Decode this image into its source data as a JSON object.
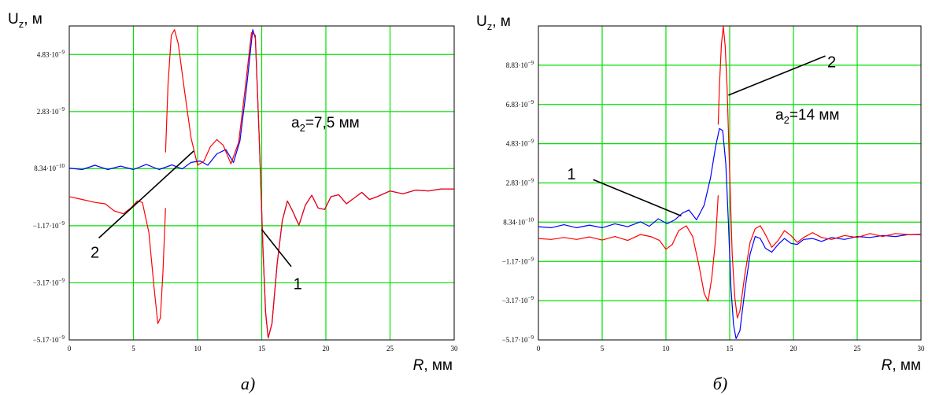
{
  "chart_data": [
    {
      "type": "line",
      "panel": "a",
      "ylabel": "Uz, м",
      "ylabel_main": "U",
      "ylabel_sub": "z",
      "ylabel_unit": ", м",
      "xlabel": "R, мм",
      "xlabel_var": "R",
      "xlabel_unit": ", мм",
      "caption": "а)",
      "annotation": {
        "prefix": "a",
        "sub": "2",
        "suffix": "=7,5 мм"
      },
      "xlim": [
        0,
        30
      ],
      "ylim": [
        -5.17e-09,
        5.83e-09
      ],
      "grid": true,
      "x_ticks": [
        {
          "value": 0,
          "label": "0"
        },
        {
          "value": 5,
          "label": "5"
        },
        {
          "value": 10,
          "label": "10"
        },
        {
          "value": 15,
          "label": "15"
        },
        {
          "value": 20,
          "label": "20"
        },
        {
          "value": 25,
          "label": "25"
        },
        {
          "value": 30,
          "label": "30"
        }
      ],
      "y_ticks": [
        {
          "value": -5.17e-09,
          "mant": "−5.17·10",
          "exp": "−9"
        },
        {
          "value": -3.17e-09,
          "mant": "−3.17·10",
          "exp": "−9"
        },
        {
          "value": -1.17e-09,
          "mant": "−1.17·10",
          "exp": "−9"
        },
        {
          "value": 8.34e-10,
          "mant": "8.34·10",
          "exp": "−10"
        },
        {
          "value": 2.83e-09,
          "mant": "2.83·10",
          "exp": "−9"
        },
        {
          "value": 4.83e-09,
          "mant": "4.83·10",
          "exp": "−9"
        }
      ],
      "series": [
        {
          "label": "1",
          "color": "#0000ff",
          "points": [
            [
              0,
              0.85
            ],
            [
              1,
              0.8
            ],
            [
              2,
              0.95
            ],
            [
              3,
              0.8
            ],
            [
              4,
              0.92
            ],
            [
              5,
              0.8
            ],
            [
              6,
              0.98
            ],
            [
              7,
              0.8
            ],
            [
              8,
              0.96
            ],
            [
              8.8,
              0.82
            ],
            [
              9.5,
              1.05
            ],
            [
              10.2,
              1.1
            ],
            [
              10.8,
              0.95
            ],
            [
              11.5,
              1.35
            ],
            [
              12.2,
              1.5
            ],
            [
              12.8,
              1.05
            ],
            [
              13.3,
              1.8
            ],
            [
              13.8,
              3.6
            ],
            [
              14.3,
              5.7
            ],
            [
              14.5,
              5.4
            ],
            [
              14.8,
              2.0
            ],
            [
              15.1,
              -2.0
            ],
            [
              15.3,
              -4.2
            ],
            [
              15.5,
              -5.1
            ],
            [
              15.8,
              -4.6
            ],
            [
              16.2,
              -2.5
            ],
            [
              16.6,
              -1.0
            ],
            [
              17.0,
              -0.3
            ],
            [
              17.4,
              -0.65
            ],
            [
              17.9,
              -1.15
            ],
            [
              18.4,
              -0.45
            ],
            [
              18.9,
              -0.1
            ],
            [
              19.4,
              -0.55
            ],
            [
              19.9,
              -0.6
            ],
            [
              20.4,
              -0.15
            ],
            [
              21,
              -0.08
            ],
            [
              21.6,
              -0.4
            ],
            [
              22.2,
              -0.2
            ],
            [
              22.8,
              0
            ],
            [
              23.4,
              -0.25
            ],
            [
              24,
              -0.15
            ],
            [
              25,
              0.05
            ],
            [
              26,
              -0.05
            ],
            [
              27,
              0.08
            ],
            [
              28,
              0.05
            ],
            [
              29,
              0.12
            ],
            [
              30,
              0.12
            ]
          ]
        },
        {
          "label": "2",
          "color": "#ff0000",
          "segments": [
            [
              [
                0,
                -0.15
              ],
              [
                1,
                -0.25
              ],
              [
                2,
                -0.35
              ],
              [
                2.8,
                -0.4
              ],
              [
                3.5,
                -0.65
              ],
              [
                4.2,
                -0.75
              ],
              [
                4.8,
                -0.55
              ],
              [
                5.3,
                -0.3
              ],
              [
                5.7,
                -0.35
              ],
              [
                6.2,
                -1.4
              ],
              [
                6.6,
                -3.3
              ],
              [
                6.9,
                -4.6
              ],
              [
                7.1,
                -4.4
              ],
              [
                7.3,
                -2.8
              ],
              [
                7.5,
                -0.55
              ]
            ],
            [
              [
                7.5,
                1.4
              ],
              [
                7.7,
                3.8
              ],
              [
                7.95,
                5.5
              ],
              [
                8.2,
                5.7
              ],
              [
                8.5,
                5.2
              ],
              [
                9.0,
                3.5
              ],
              [
                9.5,
                1.9
              ],
              [
                10.0,
                0.95
              ],
              [
                10.5,
                1.1
              ],
              [
                11.0,
                1.6
              ],
              [
                11.5,
                1.85
              ],
              [
                12.0,
                1.65
              ],
              [
                12.6,
                1.0
              ],
              [
                13.2,
                1.75
              ],
              [
                13.7,
                3.6
              ],
              [
                14.2,
                5.6
              ],
              [
                14.5,
                5.5
              ],
              [
                14.8,
                2.0
              ],
              [
                15.1,
                -2.0
              ],
              [
                15.3,
                -4.2
              ],
              [
                15.5,
                -5.1
              ],
              [
                15.8,
                -4.6
              ],
              [
                16.2,
                -2.5
              ],
              [
                16.6,
                -1.0
              ],
              [
                17.0,
                -0.3
              ],
              [
                17.4,
                -0.65
              ],
              [
                17.9,
                -1.15
              ],
              [
                18.4,
                -0.45
              ],
              [
                18.9,
                -0.1
              ],
              [
                19.4,
                -0.55
              ],
              [
                19.9,
                -0.6
              ],
              [
                20.4,
                -0.15
              ],
              [
                21,
                -0.08
              ],
              [
                21.6,
                -0.4
              ],
              [
                22.2,
                -0.2
              ],
              [
                22.8,
                0
              ],
              [
                23.4,
                -0.25
              ],
              [
                24,
                -0.15
              ],
              [
                25,
                0.05
              ],
              [
                26,
                -0.05
              ],
              [
                27,
                0.08
              ],
              [
                28,
                0.05
              ],
              [
                29,
                0.12
              ],
              [
                30,
                0.12
              ]
            ]
          ]
        }
      ],
      "leaders": [
        {
          "label": "2",
          "from": [
            2.3,
            -1.6
          ],
          "to": [
            9.7,
            1.45
          ],
          "label_at": [
            2.0,
            -2.1
          ]
        },
        {
          "label": "1",
          "from": [
            17.3,
            -2.6
          ],
          "to": [
            15.0,
            -1.3
          ],
          "label_at": [
            17.8,
            -3.2
          ]
        }
      ]
    },
    {
      "type": "line",
      "panel": "б",
      "ylabel": "Uz, м",
      "ylabel_main": "U",
      "ylabel_sub": "z",
      "ylabel_unit": ", м",
      "xlabel": "R, мм",
      "xlabel_var": "R",
      "xlabel_unit": ", мм",
      "caption": "б)",
      "annotation": {
        "prefix": "a",
        "sub": "2",
        "suffix": "=14 мм"
      },
      "xlim": [
        0,
        30
      ],
      "ylim": [
        -5.17e-09,
        1.083e-08
      ],
      "grid": true,
      "x_ticks": [
        {
          "value": 0,
          "label": "0"
        },
        {
          "value": 5,
          "label": "5"
        },
        {
          "value": 10,
          "label": "10"
        },
        {
          "value": 15,
          "label": "15"
        },
        {
          "value": 20,
          "label": "20"
        },
        {
          "value": 25,
          "label": "25"
        },
        {
          "value": 30,
          "label": "30"
        }
      ],
      "y_ticks": [
        {
          "value": -5.17e-09,
          "mant": "−5.17·10",
          "exp": "−9"
        },
        {
          "value": -3.17e-09,
          "mant": "−3.17·10",
          "exp": "−9"
        },
        {
          "value": -1.17e-09,
          "mant": "−1.17·10",
          "exp": "−9"
        },
        {
          "value": 8.34e-10,
          "mant": "8.34·10",
          "exp": "−10"
        },
        {
          "value": 2.83e-09,
          "mant": "2.83·10",
          "exp": "−9"
        },
        {
          "value": 4.83e-09,
          "mant": "4.83·10",
          "exp": "−9"
        },
        {
          "value": 6.83e-09,
          "mant": "6.83·10",
          "exp": "−9"
        },
        {
          "value": 8.83e-09,
          "mant": "8.83·10",
          "exp": "−9"
        }
      ],
      "series": [
        {
          "label": "1",
          "color": "#0000ff",
          "points": [
            [
              0,
              0.6
            ],
            [
              1,
              0.55
            ],
            [
              2,
              0.7
            ],
            [
              3,
              0.55
            ],
            [
              4,
              0.68
            ],
            [
              5,
              0.55
            ],
            [
              6,
              0.75
            ],
            [
              7,
              0.6
            ],
            [
              8,
              0.85
            ],
            [
              8.7,
              0.62
            ],
            [
              9.4,
              1.0
            ],
            [
              10.1,
              0.75
            ],
            [
              10.7,
              0.95
            ],
            [
              11.3,
              1.3
            ],
            [
              11.8,
              1.45
            ],
            [
              12.4,
              0.95
            ],
            [
              13.0,
              1.7
            ],
            [
              13.5,
              3.1
            ],
            [
              13.9,
              4.7
            ],
            [
              14.2,
              5.6
            ],
            [
              14.45,
              5.5
            ],
            [
              14.7,
              3.8
            ],
            [
              14.9,
              0.8
            ],
            [
              15.1,
              -2.5
            ],
            [
              15.3,
              -4.4
            ],
            [
              15.5,
              -5.1
            ],
            [
              15.8,
              -4.7
            ],
            [
              16.2,
              -2.6
            ],
            [
              16.6,
              -0.8
            ],
            [
              17.0,
              0.1
            ],
            [
              17.4,
              0.0
            ],
            [
              17.8,
              -0.5
            ],
            [
              18.3,
              -0.7
            ],
            [
              18.8,
              -0.3
            ],
            [
              19.3,
              0.0
            ],
            [
              19.8,
              -0.25
            ],
            [
              20.3,
              -0.3
            ],
            [
              20.8,
              -0.05
            ],
            [
              21.5,
              0.0
            ],
            [
              22.2,
              -0.15
            ],
            [
              23,
              0.05
            ],
            [
              24,
              -0.05
            ],
            [
              25,
              0.1
            ],
            [
              26,
              0.05
            ],
            [
              27,
              0.15
            ],
            [
              28,
              0.1
            ],
            [
              29,
              0.2
            ],
            [
              30,
              0.2
            ]
          ]
        },
        {
          "label": "2",
          "color": "#ff0000",
          "segments": [
            [
              [
                0,
                0
              ],
              [
                1,
                -0.05
              ],
              [
                2,
                0.05
              ],
              [
                3,
                -0.05
              ],
              [
                4,
                0.08
              ],
              [
                5,
                -0.08
              ],
              [
                6,
                0.1
              ],
              [
                7,
                -0.1
              ],
              [
                8,
                0.2
              ],
              [
                8.8,
                0.1
              ],
              [
                9.5,
                -0.1
              ],
              [
                10.0,
                -0.55
              ],
              [
                10.5,
                -0.3
              ],
              [
                11.0,
                0.4
              ],
              [
                11.6,
                0.65
              ],
              [
                12.1,
                0.1
              ],
              [
                12.6,
                -1.4
              ],
              [
                13.0,
                -2.8
              ],
              [
                13.3,
                -3.2
              ],
              [
                13.6,
                -2.0
              ],
              [
                13.9,
                0.0
              ],
              [
                14.1,
                2.2
              ]
            ],
            [
              [
                14.1,
                5.8
              ],
              [
                14.2,
                7.8
              ],
              [
                14.35,
                9.9
              ],
              [
                14.5,
                10.8
              ],
              [
                14.65,
                9.8
              ],
              [
                14.8,
                7.6
              ],
              [
                15.0,
                3.3
              ],
              [
                15.2,
                -0.8
              ],
              [
                15.4,
                -3.0
              ],
              [
                15.6,
                -4.05
              ],
              [
                15.8,
                -3.7
              ],
              [
                16.2,
                -1.8
              ],
              [
                16.6,
                -0.2
              ],
              [
                17.0,
                0.5
              ],
              [
                17.4,
                0.65
              ],
              [
                17.8,
                0.2
              ],
              [
                18.3,
                -0.45
              ],
              [
                18.8,
                -0.1
              ],
              [
                19.3,
                0.4
              ],
              [
                19.8,
                0.15
              ],
              [
                20.3,
                -0.2
              ],
              [
                20.8,
                0.05
              ],
              [
                21.5,
                0.3
              ],
              [
                22.2,
                0.05
              ],
              [
                23,
                -0.05
              ],
              [
                24,
                0.15
              ],
              [
                25,
                0.05
              ],
              [
                26,
                0.25
              ],
              [
                27,
                0.1
              ],
              [
                28,
                0.25
              ],
              [
                29,
                0.2
              ],
              [
                30,
                0.22
              ]
            ]
          ]
        }
      ],
      "leaders": [
        {
          "label": "1",
          "from": [
            4.3,
            3.0
          ],
          "to": [
            11.2,
            1.15
          ],
          "label_at": [
            2.6,
            3.3
          ]
        },
        {
          "label": "2",
          "from": [
            22.5,
            9.3
          ],
          "to": [
            14.9,
            7.3
          ],
          "label_at": [
            23.0,
            9.0
          ]
        }
      ]
    }
  ]
}
